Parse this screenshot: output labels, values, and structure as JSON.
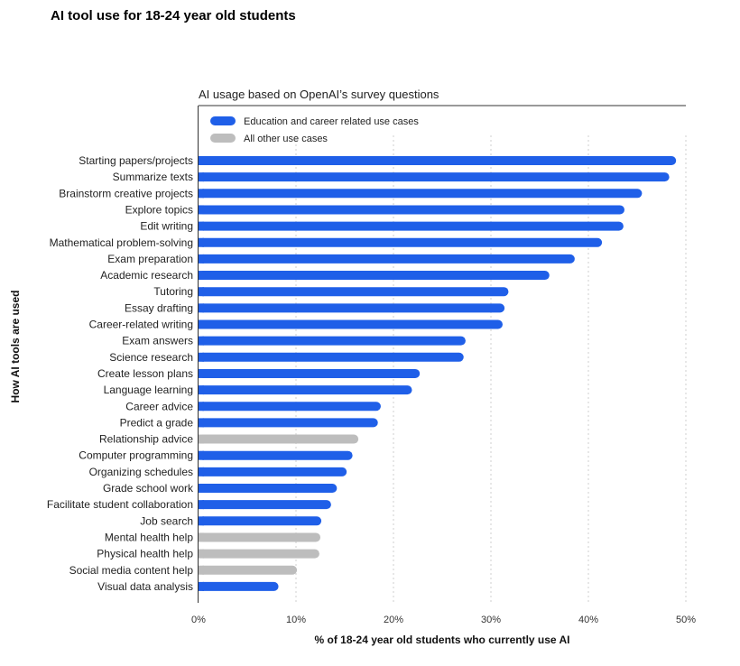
{
  "title": "AI tool use for 18-24 year old students",
  "chart_data": {
    "type": "bar",
    "orientation": "horizontal",
    "subtitle": "AI usage based on OpenAI’s survey questions",
    "xlabel": "% of 18-24 year old students who currently use AI",
    "ylabel": "How AI tools are used",
    "xlim": [
      0,
      50
    ],
    "xticks": [
      0,
      10,
      20,
      30,
      40,
      50
    ],
    "xtick_labels": [
      "0%",
      "10%",
      "20%",
      "30%",
      "40%",
      "50%"
    ],
    "grid": "vertical dotted",
    "legend_position": "top-left",
    "series": [
      {
        "name": "Education and career related use cases",
        "color": "#1f5fe8"
      },
      {
        "name": "All other use cases",
        "color": "#bdbdbd"
      }
    ],
    "categories": [
      "Starting papers/projects",
      "Summarize texts",
      "Brainstorm creative projects",
      "Explore topics",
      "Edit writing",
      "Mathematical problem-solving",
      "Exam preparation",
      "Academic research",
      "Tutoring",
      "Essay drafting",
      "Career-related writing",
      "Exam answers",
      "Science research",
      "Create lesson plans",
      "Language learning",
      "Career advice",
      "Predict a grade",
      "Relationship advice",
      "Computer programming",
      "Organizing schedules",
      "Grade school work",
      "Facilitate student collaboration",
      "Job search",
      "Mental health help",
      "Physical health help",
      "Social media content help",
      "Visual data analysis"
    ],
    "values": [
      49,
      48.3,
      45.5,
      43.7,
      43.6,
      41.4,
      38.6,
      36,
      31.8,
      31.4,
      31.2,
      27.4,
      27.2,
      22.7,
      21.9,
      18.7,
      18.4,
      16.4,
      15.8,
      15.2,
      14.2,
      13.6,
      12.6,
      12.5,
      12.4,
      10.1,
      8.2
    ],
    "groups": [
      0,
      0,
      0,
      0,
      0,
      0,
      0,
      0,
      0,
      0,
      0,
      0,
      0,
      0,
      0,
      0,
      0,
      1,
      0,
      0,
      0,
      0,
      0,
      1,
      1,
      1,
      0
    ]
  }
}
